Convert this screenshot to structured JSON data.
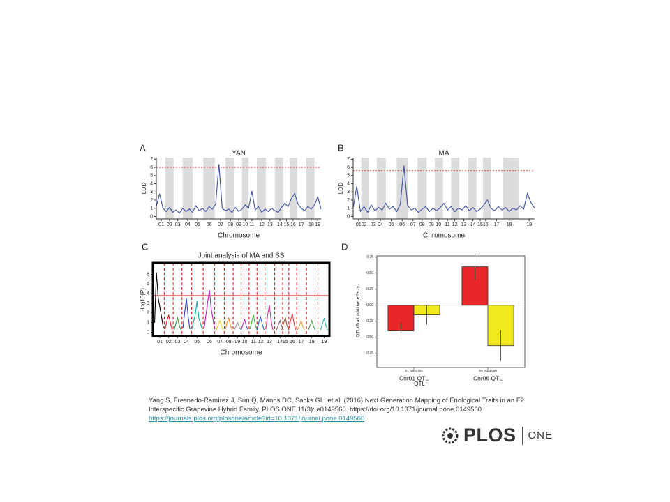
{
  "chart_data": [
    {
      "type": "line",
      "panel_label": "A",
      "title": "YAN",
      "x_label": "Chromosome",
      "y_label": "LOD",
      "xlim": [
        0,
        100
      ],
      "ylim": [
        -0.3,
        7.2
      ],
      "yticks": [
        0,
        1,
        2,
        3,
        4,
        5,
        6,
        7
      ],
      "xticks": [
        {
          "value": 3,
          "label": "01"
        },
        {
          "value": 8,
          "label": "02"
        },
        {
          "value": 13,
          "label": "03"
        },
        {
          "value": 19,
          "label": "04"
        },
        {
          "value": 25,
          "label": "05"
        },
        {
          "value": 32,
          "label": "06"
        },
        {
          "value": 39,
          "label": "07"
        },
        {
          "value": 45,
          "label": "08"
        },
        {
          "value": 50,
          "label": "09"
        },
        {
          "value": 54,
          "label": "10"
        },
        {
          "value": 58,
          "label": "11"
        },
        {
          "value": 64,
          "label": "12"
        },
        {
          "value": 69,
          "label": "13"
        },
        {
          "value": 75,
          "label": "14"
        },
        {
          "value": 79,
          "label": "15"
        },
        {
          "value": 83,
          "label": "16"
        },
        {
          "value": 88,
          "label": "17"
        },
        {
          "value": 94,
          "label": "18"
        },
        {
          "value": 98,
          "label": "19"
        }
      ],
      "bands": true,
      "threshold": 6,
      "threshold_color": "#e03030",
      "threshold_style": "dashed",
      "series": [
        {
          "color": "#3a4fa0",
          "x": [
            0,
            2,
            4,
            6,
            8,
            10,
            12,
            14,
            16,
            18,
            20,
            22,
            24,
            26,
            28,
            30,
            32,
            34,
            36,
            38,
            40,
            42,
            44,
            46,
            48,
            50,
            52,
            54,
            56,
            58,
            60,
            62,
            64,
            66,
            68,
            70,
            72,
            74,
            76,
            78,
            80,
            82,
            84,
            86,
            88,
            90,
            92,
            94,
            96,
            98,
            100
          ],
          "values": [
            1.2,
            2.8,
            1.0,
            0.6,
            1.1,
            0.5,
            0.8,
            0.4,
            1.0,
            0.6,
            0.9,
            0.5,
            1.3,
            0.7,
            1.0,
            0.6,
            1.2,
            0.9,
            1.5,
            6.4,
            1.0,
            0.7,
            0.9,
            0.5,
            1.1,
            0.6,
            0.9,
            1.4,
            1.0,
            3.1,
            0.8,
            1.2,
            0.5,
            0.9,
            0.6,
            1.0,
            0.7,
            0.5,
            1.1,
            1.6,
            1.2,
            2.2,
            2.8,
            1.5,
            1.0,
            0.7,
            1.2,
            0.9,
            1.4,
            2.4,
            0.9
          ]
        }
      ]
    },
    {
      "type": "line",
      "panel_label": "B",
      "title": "MA",
      "x_label": "Chromosome",
      "y_label": "LOD",
      "xlim": [
        0,
        100
      ],
      "ylim": [
        -0.3,
        7.2
      ],
      "yticks": [
        0,
        1,
        2,
        3,
        4,
        5,
        6,
        7
      ],
      "xticks": [
        {
          "value": 3,
          "label": "01"
        },
        {
          "value": 6,
          "label": "02"
        },
        {
          "value": 11,
          "label": "03"
        },
        {
          "value": 15,
          "label": "04"
        },
        {
          "value": 21,
          "label": "05"
        },
        {
          "value": 27,
          "label": "06"
        },
        {
          "value": 33,
          "label": "07"
        },
        {
          "value": 38,
          "label": "08"
        },
        {
          "value": 43,
          "label": "09"
        },
        {
          "value": 47,
          "label": "10"
        },
        {
          "value": 52,
          "label": "11"
        },
        {
          "value": 56,
          "label": "12"
        },
        {
          "value": 61,
          "label": "13"
        },
        {
          "value": 66,
          "label": "14"
        },
        {
          "value": 70,
          "label": "15"
        },
        {
          "value": 73,
          "label": "16"
        },
        {
          "value": 79,
          "label": "17"
        },
        {
          "value": 86,
          "label": "18"
        },
        {
          "value": 97,
          "label": "19"
        }
      ],
      "bands": true,
      "threshold": 5.6,
      "threshold_color": "#e03030",
      "threshold_style": "dashed",
      "series": [
        {
          "color": "#3a4fa0",
          "x": [
            0,
            2,
            4,
            6,
            8,
            10,
            12,
            14,
            16,
            18,
            20,
            22,
            24,
            26,
            28,
            30,
            32,
            34,
            36,
            38,
            40,
            42,
            44,
            46,
            48,
            50,
            52,
            54,
            56,
            58,
            60,
            62,
            64,
            66,
            68,
            70,
            72,
            74,
            76,
            78,
            80,
            82,
            84,
            86,
            88,
            90,
            92,
            94,
            96,
            98,
            100
          ],
          "values": [
            1.0,
            3.7,
            0.6,
            1.2,
            0.5,
            1.4,
            0.7,
            1.1,
            0.8,
            1.6,
            0.9,
            1.2,
            0.6,
            1.5,
            6.2,
            1.3,
            0.8,
            1.0,
            0.5,
            0.9,
            1.2,
            0.6,
            1.0,
            0.7,
            1.1,
            1.6,
            0.8,
            1.2,
            0.6,
            1.0,
            0.8,
            1.3,
            0.7,
            1.1,
            0.6,
            0.9,
            1.4,
            2.0,
            1.0,
            0.7,
            1.2,
            0.8,
            1.1,
            0.6,
            1.0,
            0.8,
            1.3,
            0.9,
            2.8,
            1.7,
            1.0
          ]
        }
      ]
    },
    {
      "type": "line",
      "panel_label": "C",
      "title": "Joint analysis of MA and SS",
      "x_label": "Chromosome",
      "y_label": "-log10(P)",
      "xlim": [
        0,
        100
      ],
      "ylim": [
        -0.4,
        7.2
      ],
      "yticks": [
        0,
        1,
        2,
        3,
        4,
        5,
        6
      ],
      "xticks": [
        {
          "value": 4,
          "label": "01"
        },
        {
          "value": 9,
          "label": "02"
        },
        {
          "value": 14,
          "label": "03"
        },
        {
          "value": 19,
          "label": "04"
        },
        {
          "value": 25,
          "label": "05"
        },
        {
          "value": 32,
          "label": "06"
        },
        {
          "value": 38,
          "label": "07"
        },
        {
          "value": 43,
          "label": "08"
        },
        {
          "value": 48,
          "label": "09"
        },
        {
          "value": 52,
          "label": "10"
        },
        {
          "value": 57,
          "label": "11"
        },
        {
          "value": 61,
          "label": "12"
        },
        {
          "value": 66,
          "label": "13"
        },
        {
          "value": 72,
          "label": "14"
        },
        {
          "value": 75,
          "label": "15"
        },
        {
          "value": 79,
          "label": "16"
        },
        {
          "value": 84,
          "label": "17"
        },
        {
          "value": 90,
          "label": "18"
        },
        {
          "value": 97,
          "label": "19"
        }
      ],
      "bands": false,
      "dividers": true,
      "threshold": 3.8,
      "threshold_color": "#e03030",
      "threshold_style": "solid",
      "series": [
        {
          "color": "#000000",
          "x": [
            1,
            2,
            3,
            5,
            6
          ],
          "values": [
            1.0,
            6.2,
            3.6,
            1.5,
            0.4
          ]
        },
        {
          "color": "#e02020",
          "x": [
            7,
            8,
            9,
            10,
            11
          ],
          "values": [
            0.3,
            1.2,
            1.8,
            0.9,
            0.2
          ]
        },
        {
          "color": "#2a9a3a",
          "x": [
            12,
            13,
            14,
            15,
            16
          ],
          "values": [
            0.2,
            0.9,
            1.5,
            0.7,
            0.2
          ]
        },
        {
          "color": "#2a3fb0",
          "x": [
            17,
            18,
            19,
            20,
            21
          ],
          "values": [
            0.4,
            2.0,
            3.5,
            1.6,
            0.3
          ]
        },
        {
          "color": "#1aa0a0",
          "x": [
            22,
            24,
            25,
            26,
            28
          ],
          "values": [
            0.3,
            1.8,
            3.2,
            1.5,
            0.3
          ]
        },
        {
          "color": "#c020c0",
          "x": [
            29,
            31,
            32,
            33,
            35
          ],
          "values": [
            0.4,
            3.0,
            4.4,
            2.5,
            0.3
          ]
        },
        {
          "color": "#e8d020",
          "x": [
            36,
            37,
            38,
            39,
            40
          ],
          "values": [
            0.2,
            0.8,
            1.2,
            0.6,
            0.2
          ]
        },
        {
          "color": "#f09020",
          "x": [
            41,
            42,
            43,
            44,
            45
          ],
          "values": [
            0.2,
            1.0,
            1.5,
            0.7,
            0.2
          ]
        },
        {
          "color": "#909090",
          "x": [
            46,
            47,
            48,
            49,
            50
          ],
          "values": [
            0.2,
            0.6,
            1.0,
            0.5,
            0.2
          ]
        },
        {
          "color": "#8040c0",
          "x": [
            50,
            51,
            52,
            53,
            54
          ],
          "values": [
            0.2,
            0.8,
            1.3,
            0.6,
            0.2
          ]
        },
        {
          "color": "#40b040",
          "x": [
            55,
            56,
            57,
            58,
            59
          ],
          "values": [
            0.3,
            1.1,
            1.8,
            0.8,
            0.2
          ]
        },
        {
          "color": "#3060d0",
          "x": [
            59,
            60,
            61,
            62,
            63
          ],
          "values": [
            0.2,
            1.0,
            1.6,
            0.8,
            0.2
          ]
        },
        {
          "color": "#e030a0",
          "x": [
            64,
            65,
            66,
            67,
            68
          ],
          "values": [
            0.3,
            1.8,
            2.8,
            1.2,
            0.2
          ]
        },
        {
          "color": "#707070",
          "x": [
            70,
            71,
            72,
            73,
            74
          ],
          "values": [
            0.2,
            0.7,
            1.2,
            0.6,
            0.2
          ]
        },
        {
          "color": "#a05030",
          "x": [
            73,
            74,
            75,
            76,
            77
          ],
          "values": [
            0.2,
            0.9,
            1.5,
            0.7,
            0.2
          ]
        },
        {
          "color": "#e04040",
          "x": [
            77,
            78,
            79,
            80,
            81
          ],
          "values": [
            0.3,
            1.2,
            1.9,
            0.9,
            0.2
          ]
        },
        {
          "color": "#f0a030",
          "x": [
            82,
            83,
            84,
            85,
            86
          ],
          "values": [
            0.2,
            0.7,
            1.2,
            0.6,
            0.2
          ]
        },
        {
          "color": "#50a050",
          "x": [
            88,
            89,
            90,
            91,
            92
          ],
          "values": [
            0.2,
            0.7,
            1.2,
            0.6,
            0.2
          ]
        },
        {
          "color": "#30b0b0",
          "x": [
            95,
            96,
            97,
            98,
            99
          ],
          "values": [
            0.2,
            0.9,
            1.4,
            0.7,
            0.2
          ]
        }
      ]
    },
    {
      "type": "bar",
      "panel_label": "D",
      "x_label": "QTL",
      "y_label": "QTLxTrait additive effects",
      "categories": [
        "Chr01 QTL",
        "Chr06 QTL"
      ],
      "marker_labels": [
        "S1_5061702",
        "S6_8358059"
      ],
      "ylim": [
        -0.97,
        0.77
      ],
      "yticks": [
        {
          "value": 0.75,
          "label": "0.75"
        },
        {
          "value": 0.5,
          "label": "0.50"
        },
        {
          "value": 0.25,
          "label": "0.25"
        },
        {
          "value": 0,
          "label": "0.00"
        },
        {
          "value": -0.25,
          "label": "-0.25"
        },
        {
          "value": -0.5,
          "label": "-0.50"
        },
        {
          "value": -0.75,
          "label": "-0.75"
        }
      ],
      "series": [
        {
          "color": "#e82828",
          "values": [
            -0.4,
            0.6
          ],
          "errors": [
            0.14,
            0.21
          ]
        },
        {
          "color": "#f2ea1c",
          "values": [
            -0.15,
            -0.63
          ],
          "errors": [
            0.15,
            0.24
          ]
        }
      ]
    }
  ],
  "citation": {
    "lines": [
      "Yang S, Fresnedo-Ramírez J, Sun Q, Manns DC, Sacks GL, et al. (2016) Next Generation Mapping of Enological Traits in an F2",
      "Interspecific Grapevine Hybrid Family. PLOS ONE 11(3): e0149560. https://doi.org/10.1371/journal.pone.0149560"
    ],
    "link": "https://journals.plos.org/plosone/article?id=10.1371/journal.pone.0149560"
  },
  "logo": {
    "brand": "PLOS",
    "journal": "ONE"
  }
}
